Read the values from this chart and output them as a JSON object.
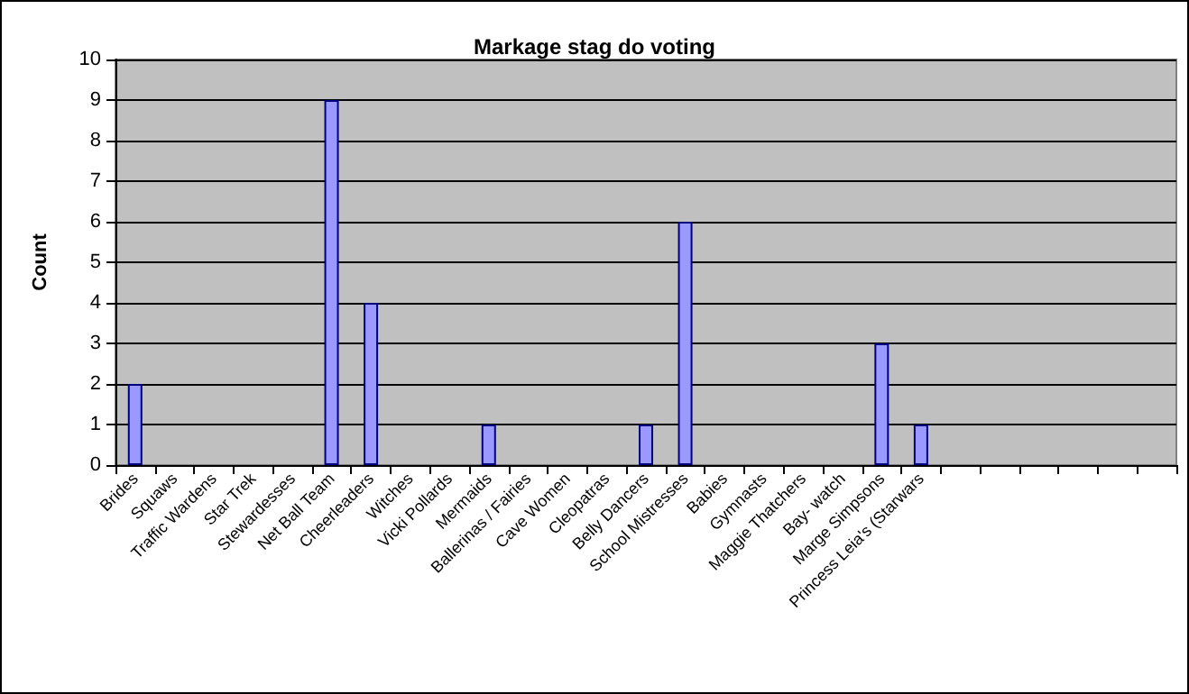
{
  "chart_data": {
    "type": "bar",
    "title": "Markage stag do voting",
    "ylabel": "Count",
    "categories": [
      "Brides",
      "Squaws",
      "Traffic Wardens",
      "Star Trek",
      "Stewardesses",
      "Net Ball Team",
      "Cheerleaders",
      "Witches",
      "Vicki Pollards",
      "Mermaids",
      "Ballerinas / Fairies",
      "Cave Women",
      "Cleopatras",
      "Belly Dancers",
      "School Mistresses",
      "Babies",
      "Gymnasts",
      "Maggie Thatchers",
      "Bay- watch",
      "Marge Simpsons",
      "Princess Leia's (Starwars",
      null,
      null,
      null,
      null,
      null,
      null
    ],
    "values": [
      2,
      0,
      0,
      0,
      0,
      9,
      4,
      0,
      0,
      1,
      0,
      0,
      0,
      1,
      6,
      0,
      0,
      0,
      0,
      3,
      1,
      null,
      null,
      null,
      null,
      null,
      null
    ],
    "color": "#9999ff",
    "ylim": [
      0,
      10
    ],
    "yticks": [
      0,
      1,
      2,
      3,
      4,
      5,
      6,
      7,
      8,
      9,
      10
    ],
    "grid": "y"
  }
}
